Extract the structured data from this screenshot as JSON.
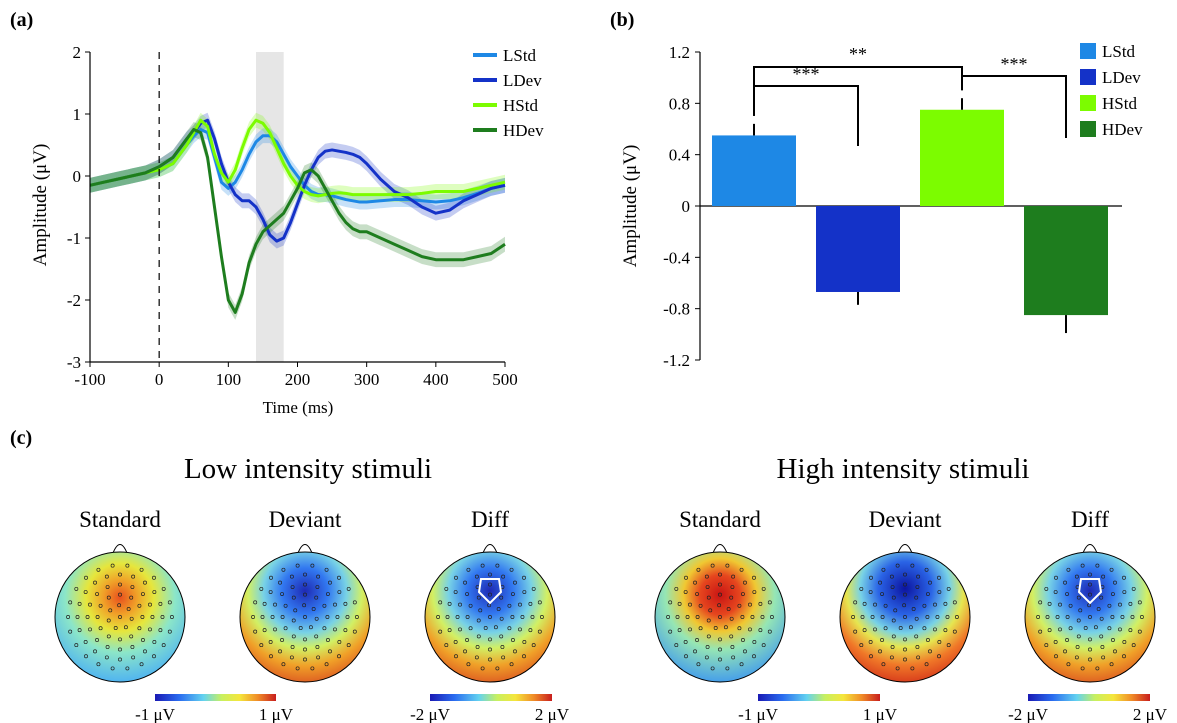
{
  "panel_labels": {
    "a": "(a)",
    "b": "(b)",
    "c": "(c)"
  },
  "colors": {
    "LStd": "#1e88e5",
    "LDev": "#1432c8",
    "HStd": "#7cfc00",
    "HDev": "#1e7d1e",
    "highlight": "#e6e6e6"
  },
  "chart_data": [
    {
      "type": "line",
      "panel": "(a)",
      "xlabel": "Time (ms)",
      "ylabel": "Amplitude (μV)",
      "xlim": [
        -100,
        500
      ],
      "ylim": [
        -3,
        2
      ],
      "xticks": [
        -100,
        0,
        100,
        200,
        300,
        400,
        500
      ],
      "yticks": [
        -3,
        -2,
        -1,
        0,
        1,
        2
      ],
      "onset_marker_x": 0,
      "highlight_window": [
        140,
        180
      ],
      "legend": [
        "LStd",
        "LDev",
        "HStd",
        "HDev"
      ],
      "legend_position": "top-right",
      "x": [
        -100,
        -80,
        -60,
        -40,
        -20,
        0,
        20,
        40,
        50,
        60,
        70,
        80,
        90,
        100,
        110,
        120,
        130,
        140,
        150,
        160,
        170,
        180,
        190,
        200,
        210,
        220,
        230,
        240,
        250,
        260,
        270,
        280,
        290,
        300,
        320,
        340,
        360,
        380,
        400,
        420,
        440,
        460,
        480,
        500
      ],
      "series": [
        {
          "name": "LStd",
          "values": [
            -0.15,
            -0.1,
            -0.05,
            0.0,
            0.05,
            0.1,
            0.2,
            0.5,
            0.65,
            0.75,
            0.7,
            0.3,
            -0.1,
            -0.2,
            -0.1,
            0.1,
            0.35,
            0.55,
            0.65,
            0.65,
            0.55,
            0.35,
            0.15,
            0.0,
            -0.15,
            -0.25,
            -0.3,
            -0.3,
            -0.32,
            -0.35,
            -0.38,
            -0.4,
            -0.42,
            -0.42,
            -0.4,
            -0.38,
            -0.38,
            -0.4,
            -0.42,
            -0.4,
            -0.35,
            -0.28,
            -0.2,
            -0.15
          ]
        },
        {
          "name": "LDev",
          "values": [
            -0.15,
            -0.1,
            -0.05,
            0.0,
            0.05,
            0.15,
            0.3,
            0.6,
            0.7,
            0.85,
            0.9,
            0.6,
            0.2,
            -0.1,
            -0.3,
            -0.4,
            -0.4,
            -0.5,
            -0.7,
            -0.95,
            -1.05,
            -1.0,
            -0.75,
            -0.45,
            -0.15,
            0.1,
            0.3,
            0.4,
            0.42,
            0.4,
            0.38,
            0.35,
            0.3,
            0.2,
            -0.05,
            -0.25,
            -0.35,
            -0.5,
            -0.6,
            -0.55,
            -0.4,
            -0.3,
            -0.2,
            -0.15
          ]
        },
        {
          "name": "HStd",
          "values": [
            -0.15,
            -0.1,
            -0.05,
            0.0,
            0.05,
            0.1,
            0.2,
            0.5,
            0.7,
            0.9,
            0.8,
            0.35,
            0.05,
            -0.1,
            0.1,
            0.45,
            0.75,
            0.9,
            0.85,
            0.7,
            0.45,
            0.2,
            0.0,
            -0.15,
            -0.25,
            -0.3,
            -0.32,
            -0.3,
            -0.28,
            -0.27,
            -0.28,
            -0.3,
            -0.3,
            -0.3,
            -0.3,
            -0.3,
            -0.3,
            -0.28,
            -0.25,
            -0.25,
            -0.25,
            -0.2,
            -0.15,
            -0.1
          ]
        },
        {
          "name": "HDev",
          "values": [
            -0.15,
            -0.1,
            -0.05,
            0.0,
            0.05,
            0.15,
            0.3,
            0.6,
            0.75,
            0.7,
            0.3,
            -0.5,
            -1.3,
            -2.0,
            -2.2,
            -1.9,
            -1.4,
            -1.1,
            -0.9,
            -0.8,
            -0.7,
            -0.6,
            -0.4,
            -0.2,
            0.05,
            0.1,
            0.0,
            -0.2,
            -0.4,
            -0.6,
            -0.75,
            -0.85,
            -0.9,
            -0.9,
            -1.0,
            -1.1,
            -1.2,
            -1.3,
            -1.35,
            -1.35,
            -1.35,
            -1.3,
            -1.25,
            -1.1
          ]
        }
      ]
    },
    {
      "type": "bar",
      "panel": "(b)",
      "ylabel": "Amplitude (μV)",
      "ylim": [
        -1.2,
        1.2
      ],
      "yticks": [
        -1.2,
        -0.8,
        -0.4,
        0,
        0.4,
        0.8,
        1.2
      ],
      "categories": [
        "LStd",
        "LDev",
        "HStd",
        "HDev"
      ],
      "values": [
        0.55,
        -0.67,
        0.75,
        -0.85
      ],
      "errors": [
        0.09,
        0.1,
        0.09,
        0.14
      ],
      "legend": [
        "LStd",
        "LDev",
        "HStd",
        "HDev"
      ],
      "legend_position": "top-right",
      "significance": [
        {
          "pair": [
            "LStd",
            "HStd"
          ],
          "label": "**"
        },
        {
          "pair": [
            "LStd",
            "LDev"
          ],
          "label": "***"
        },
        {
          "pair": [
            "HStd",
            "HDev"
          ],
          "label": "***"
        }
      ]
    }
  ],
  "topomaps": {
    "groups": [
      {
        "title": "Low intensity stimuli",
        "maps": [
          {
            "label": "Standard",
            "pattern": "frontal-positive-weak",
            "roi": false
          },
          {
            "label": "Deviant",
            "pattern": "frontal-negative",
            "roi": false
          },
          {
            "label": "Diff",
            "pattern": "frontal-negative",
            "roi": true
          }
        ],
        "colorbars": [
          {
            "min": "-1 μV",
            "max": "1 μV"
          },
          {
            "min": "-2 μV",
            "max": "2 μV"
          }
        ]
      },
      {
        "title": "High intensity stimuli",
        "maps": [
          {
            "label": "Standard",
            "pattern": "frontal-positive",
            "roi": false
          },
          {
            "label": "Deviant",
            "pattern": "frontal-negative-strong",
            "roi": false
          },
          {
            "label": "Diff",
            "pattern": "frontal-negative",
            "roi": true
          }
        ],
        "colorbars": [
          {
            "min": "-1 μV",
            "max": "1 μV"
          },
          {
            "min": "-2 μV",
            "max": "2 μV"
          }
        ]
      }
    ]
  }
}
